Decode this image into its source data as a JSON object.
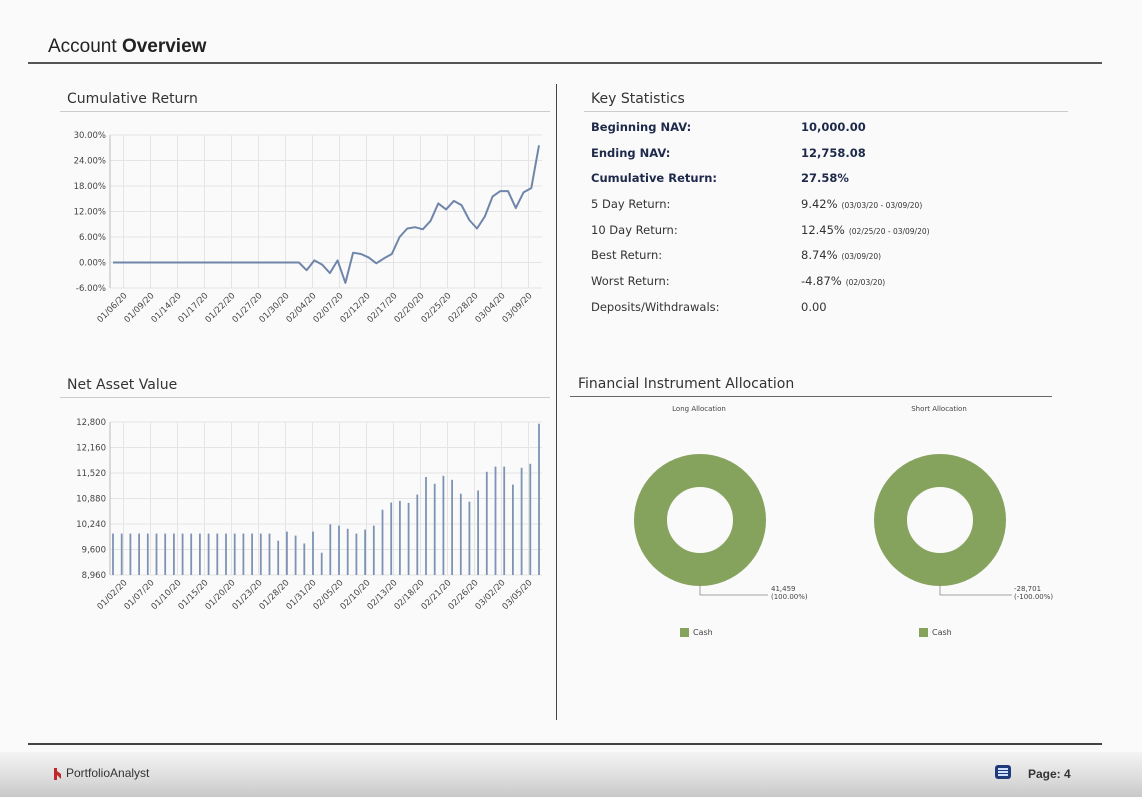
{
  "page": {
    "title_regular": "Account ",
    "title_bold": "Overview",
    "brand": "PortfolioAnalyst",
    "page_label": "Page: 4"
  },
  "sections": {
    "cumulative_return": "Cumulative Return",
    "net_asset_value": "Net Asset Value",
    "key_statistics": "Key Statistics",
    "allocation": "Financial Instrument Allocation"
  },
  "key_statistics": [
    {
      "label": "Beginning NAV:",
      "value": "10,000.00",
      "note": "",
      "bold": true
    },
    {
      "label": "Ending NAV:",
      "value": "12,758.08",
      "note": "",
      "bold": true
    },
    {
      "label": "Cumulative Return:",
      "value": "27.58%",
      "note": "",
      "bold": true
    },
    {
      "label": "5 Day Return:",
      "value": "9.42%",
      "note": "(03/03/20 - 03/09/20)",
      "bold": false
    },
    {
      "label": "10 Day Return:",
      "value": "12.45%",
      "note": "(02/25/20 - 03/09/20)",
      "bold": false
    },
    {
      "label": "Best Return:",
      "value": "8.74%",
      "note": "(03/09/20)",
      "bold": false
    },
    {
      "label": "Worst Return:",
      "value": "-4.87%",
      "note": "(02/03/20)",
      "bold": false
    },
    {
      "label": "Deposits/Withdrawals:",
      "value": "0.00",
      "note": "",
      "bold": false
    }
  ],
  "allocation": {
    "long": {
      "title": "Long Allocation",
      "value_label": "41,459",
      "pct_label": "(100.00%)",
      "legend": "Cash"
    },
    "short": {
      "title": "Short Allocation",
      "value_label": "-28,701",
      "pct_label": "(-100.00%)",
      "legend": "Cash"
    }
  },
  "colors": {
    "line": "#6f86aa",
    "bar": "#7d93b5",
    "donut": "#86a35e",
    "grid": "#e4e4e4"
  },
  "chart_data": [
    {
      "type": "line",
      "title": "Cumulative Return",
      "y_ticks": [
        "30.00%",
        "24.00%",
        "18.00%",
        "12.00%",
        "6.00%",
        "0.00%",
        "-6.00%"
      ],
      "ylim": [
        -6,
        30
      ],
      "x_ticks": [
        "01/06/20",
        "01/09/20",
        "01/14/20",
        "01/17/20",
        "01/22/20",
        "01/27/20",
        "01/30/20",
        "02/04/20",
        "02/07/20",
        "02/12/20",
        "02/17/20",
        "02/20/20",
        "02/25/20",
        "02/28/20",
        "03/04/20",
        "03/09/20"
      ],
      "y": [
        0,
        0,
        0,
        0,
        0,
        0,
        0,
        0,
        0,
        0,
        0,
        0,
        0,
        0,
        0,
        0,
        0,
        0,
        0,
        0,
        0,
        0,
        0,
        0,
        0,
        -1.8,
        0.5,
        -0.5,
        -2.5,
        0.5,
        -4.8,
        2.3,
        2.0,
        1.2,
        -0.2,
        1.0,
        2.0,
        6.0,
        8.0,
        8.3,
        7.8,
        9.8,
        13.9,
        12.5,
        14.5,
        13.5,
        10.0,
        8.0,
        10.8,
        15.5,
        16.8,
        16.8,
        12.8,
        16.5,
        17.5,
        27.58
      ]
    },
    {
      "type": "bar",
      "title": "Net Asset Value",
      "y_ticks": [
        "12,800",
        "12,160",
        "11,520",
        "10,880",
        "10,240",
        "9,600",
        "8,960"
      ],
      "ylim": [
        8960,
        12800
      ],
      "x_ticks": [
        "01/02/20",
        "01/07/20",
        "01/10/20",
        "01/15/20",
        "01/20/20",
        "01/23/20",
        "01/28/20",
        "01/31/20",
        "02/05/20",
        "02/10/20",
        "02/13/20",
        "02/18/20",
        "02/21/20",
        "02/26/20",
        "03/02/20",
        "03/05/20"
      ],
      "values": [
        10000,
        10000,
        10000,
        10000,
        10000,
        10000,
        10000,
        10000,
        10000,
        10000,
        10000,
        10000,
        10000,
        10000,
        10000,
        10000,
        10000,
        10000,
        10000,
        9820,
        10050,
        9950,
        9750,
        10050,
        9520,
        10230,
        10200,
        10120,
        10000,
        10100,
        10200,
        10600,
        10780,
        10820,
        10770,
        10980,
        11420,
        11250,
        11450,
        11350,
        11000,
        10800,
        11080,
        11550,
        11680,
        11680,
        11230,
        11650,
        11750,
        12758
      ]
    }
  ]
}
